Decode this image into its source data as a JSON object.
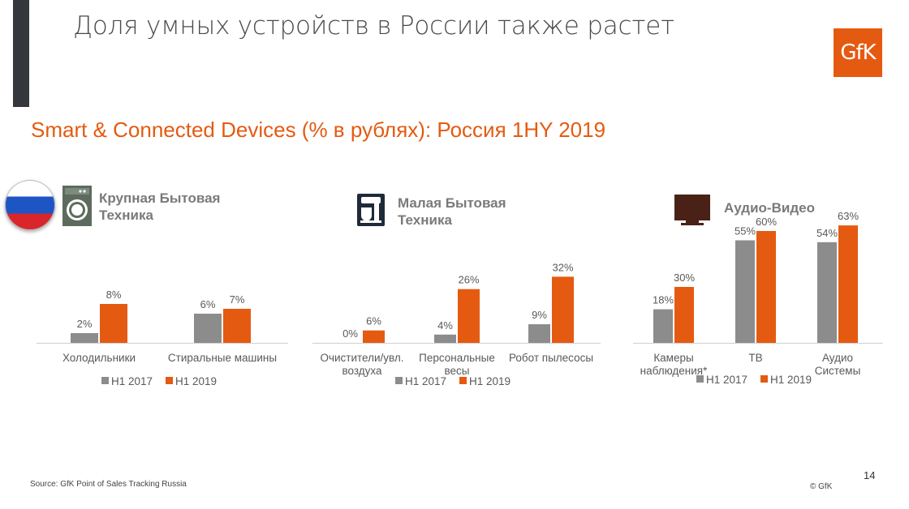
{
  "header": {
    "title": "Доля умных устройств в России также растет",
    "logo_text": "GfK"
  },
  "subtitle": "Smart & Connected Devices (% в рублях): Россия 1HY 2019",
  "colors": {
    "series_2017": "#8c8c8c",
    "series_2019": "#e55a11",
    "accent": "#e55a11",
    "header_bar": "#34383c"
  },
  "categories": [
    {
      "title_line1": "Крупная Бытовая",
      "title_line2": "Техника",
      "icon": "washing-machine-icon"
    },
    {
      "title_line1": "Малая Бытовая",
      "title_line2": "Техника",
      "icon": "kitchen-mixer-icon"
    },
    {
      "title_line1": "Аудио-Видео",
      "title_line2": "",
      "icon": "tv-icon"
    }
  ],
  "chart_data": [
    {
      "type": "bar",
      "categories": [
        "Холодильники",
        "Стиральные машины"
      ],
      "series": [
        {
          "name": "H1 2017",
          "values": [
            2,
            6
          ]
        },
        {
          "name": "H1 2019",
          "values": [
            8,
            7
          ]
        }
      ],
      "data_labels": [
        [
          "2%",
          "6%"
        ],
        [
          "8%",
          "7%"
        ]
      ],
      "legend": "bottom"
    },
    {
      "type": "bar",
      "categories": [
        [
          "Очистители/увл.",
          "воздуха"
        ],
        [
          "Персональные",
          "весы"
        ],
        [
          "Робот пылесосы"
        ]
      ],
      "series": [
        {
          "name": "H1 2017",
          "values": [
            0,
            4,
            9
          ]
        },
        {
          "name": "H1 2019",
          "values": [
            6,
            26,
            32
          ]
        }
      ],
      "data_labels": [
        [
          "0%",
          "4%",
          "9%"
        ],
        [
          "6%",
          "26%",
          "32%"
        ]
      ],
      "legend": "bottom"
    },
    {
      "type": "bar",
      "categories": [
        [
          "Камеры",
          "наблюдения*"
        ],
        [
          "ТВ"
        ],
        [
          "Аудио",
          "Системы"
        ]
      ],
      "series": [
        {
          "name": "H1 2017",
          "values": [
            18,
            55,
            54
          ]
        },
        {
          "name": "H1 2019",
          "values": [
            30,
            60,
            63
          ]
        }
      ],
      "data_labels": [
        [
          "18%",
          "55%",
          "54%"
        ],
        [
          "30%",
          "60%",
          "63%"
        ]
      ],
      "legend": "bottom"
    }
  ],
  "footer": {
    "source": "Source: GfK Point of Sales Tracking Russia",
    "copyright": "© GfK",
    "page": "14"
  }
}
